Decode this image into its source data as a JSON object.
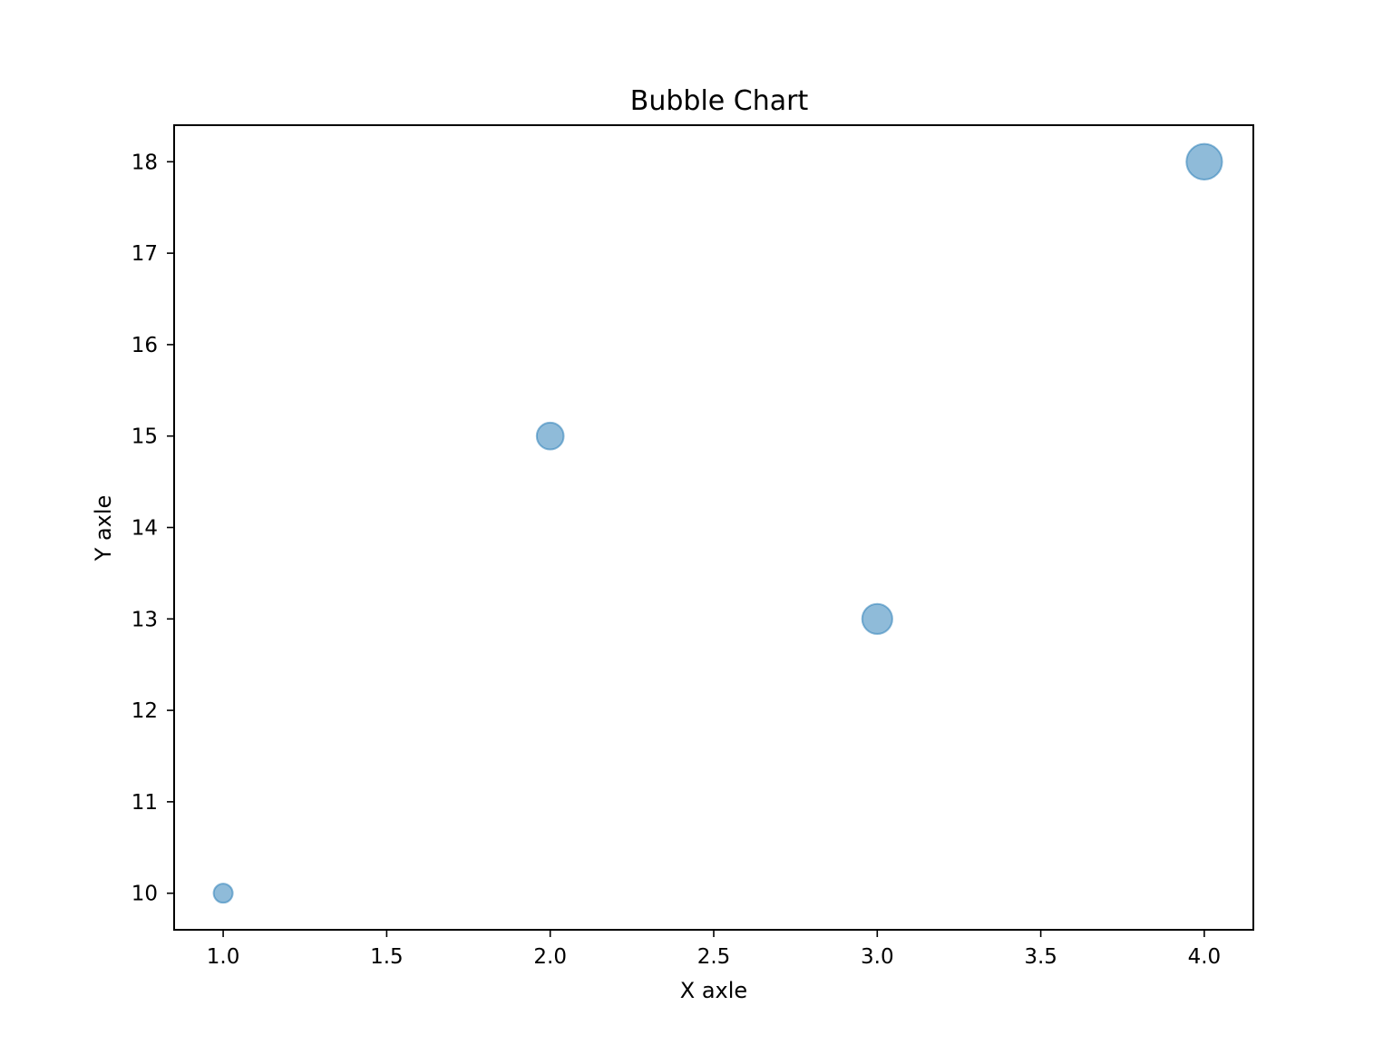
{
  "chart_data": {
    "type": "scatter",
    "title": "Bubble Chart",
    "xlabel": "X axle",
    "ylabel": "Y axle",
    "x": [
      1,
      2,
      3,
      4
    ],
    "y": [
      10,
      15,
      13,
      18
    ],
    "sizes": [
      10,
      20,
      25,
      35
    ],
    "xlim": [
      0.85,
      4.15
    ],
    "ylim": [
      9.6,
      18.4
    ],
    "xticks": [
      "1.0",
      "1.5",
      "2.0",
      "2.5",
      "3.0",
      "3.5",
      "4.0"
    ],
    "yticks": [
      "10",
      "11",
      "12",
      "13",
      "14",
      "15",
      "16",
      "17",
      "18"
    ],
    "grid": false,
    "color": "#1f77b4",
    "alpha": 0.5
  }
}
